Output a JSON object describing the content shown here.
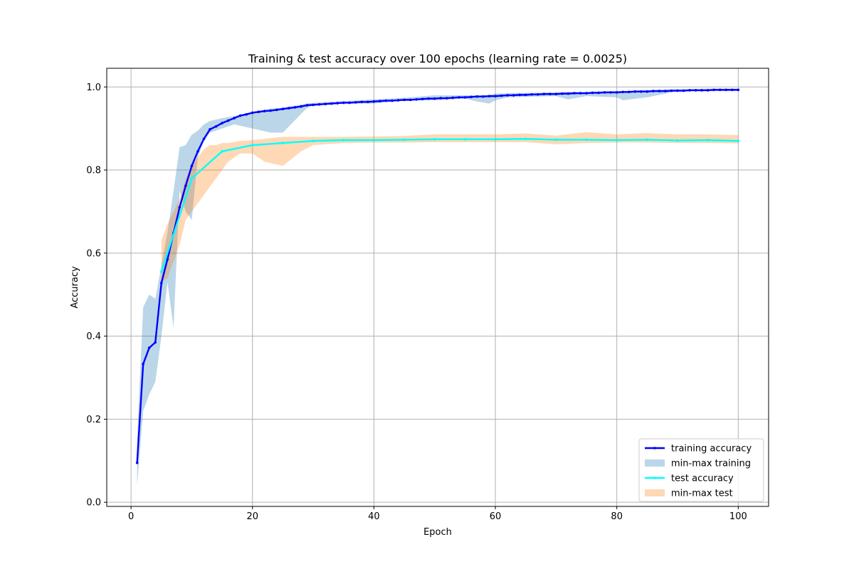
{
  "chart_data": {
    "type": "line",
    "title": "Training & test accuracy over 100 epochs (learning rate = 0.0025)",
    "xlabel": "Epoch",
    "ylabel": "Accuracy",
    "xlim": [
      -4,
      105
    ],
    "ylim": [
      -0.01,
      1.045
    ],
    "xticks": [
      0,
      20,
      40,
      60,
      80,
      100
    ],
    "yticks": [
      0.0,
      0.2,
      0.4,
      0.6,
      0.8,
      1.0
    ],
    "ytick_labels": [
      "0.0",
      "0.2",
      "0.4",
      "0.6",
      "0.8",
      "1.0"
    ],
    "grid": true,
    "legend_position": "lower right",
    "legend": [
      {
        "label": "training accuracy",
        "kind": "line-marker",
        "color": "#0000ff"
      },
      {
        "label": "min-max training",
        "kind": "band",
        "color": "#1f77b4",
        "alpha": 0.3
      },
      {
        "label": "test accuracy",
        "kind": "line-marker",
        "color": "#00ffff"
      },
      {
        "label": "min-max test",
        "kind": "band",
        "color": "#ff7f0e",
        "alpha": 0.3
      }
    ],
    "bands": [
      {
        "name": "min-max training",
        "color": "#1f77b4",
        "alpha": 0.3,
        "x": [
          1,
          2,
          3,
          4,
          5,
          6,
          7,
          8,
          9,
          10,
          11,
          12,
          13,
          15,
          17,
          20,
          23,
          25,
          27,
          29,
          30,
          35,
          40,
          45,
          50,
          55,
          57,
          59,
          60,
          62,
          65,
          70,
          72,
          75,
          80,
          81,
          85,
          90,
          95,
          100
        ],
        "min": [
          0.04,
          0.22,
          0.26,
          0.29,
          0.4,
          0.53,
          0.42,
          0.75,
          0.7,
          0.68,
          0.83,
          0.87,
          0.89,
          0.9,
          0.91,
          0.9,
          0.89,
          0.89,
          0.92,
          0.95,
          0.955,
          0.96,
          0.96,
          0.968,
          0.968,
          0.972,
          0.965,
          0.96,
          0.968,
          0.975,
          0.976,
          0.978,
          0.97,
          0.978,
          0.975,
          0.968,
          0.975,
          0.99,
          0.99,
          0.99
        ],
        "max": [
          0.15,
          0.47,
          0.5,
          0.49,
          0.57,
          0.65,
          0.75,
          0.855,
          0.86,
          0.885,
          0.895,
          0.91,
          0.918,
          0.925,
          0.93,
          0.94,
          0.948,
          0.95,
          0.955,
          0.96,
          0.962,
          0.966,
          0.97,
          0.974,
          0.98,
          0.98,
          0.98,
          0.98,
          0.984,
          0.985,
          0.986,
          0.987,
          0.988,
          0.988,
          0.99,
          0.99,
          0.993,
          0.995,
          0.996,
          0.996
        ]
      },
      {
        "name": "min-max test",
        "color": "#ff7f0e",
        "alpha": 0.3,
        "x": [
          5,
          6,
          7,
          8,
          9,
          10,
          11,
          12,
          13,
          14,
          15,
          16,
          18,
          20,
          22,
          25,
          28,
          30,
          35,
          40,
          45,
          50,
          55,
          60,
          65,
          70,
          75,
          80,
          85,
          90,
          95,
          100
        ],
        "min": [
          0.53,
          0.54,
          0.58,
          0.62,
          0.68,
          0.7,
          0.72,
          0.74,
          0.76,
          0.78,
          0.8,
          0.82,
          0.84,
          0.84,
          0.82,
          0.81,
          0.845,
          0.86,
          0.865,
          0.866,
          0.866,
          0.867,
          0.867,
          0.867,
          0.867,
          0.862,
          0.865,
          0.866,
          0.866,
          0.865,
          0.865,
          0.864
        ],
        "max": [
          0.63,
          0.67,
          0.7,
          0.73,
          0.78,
          0.81,
          0.83,
          0.85,
          0.86,
          0.86,
          0.865,
          0.865,
          0.87,
          0.872,
          0.875,
          0.88,
          0.88,
          0.88,
          0.88,
          0.881,
          0.882,
          0.886,
          0.886,
          0.886,
          0.888,
          0.883,
          0.891,
          0.886,
          0.889,
          0.886,
          0.886,
          0.884
        ]
      }
    ],
    "series": [
      {
        "name": "training accuracy",
        "color": "#0000ff",
        "x": [
          1,
          2,
          3,
          4,
          5,
          6,
          7,
          8,
          9,
          10,
          11,
          12,
          13,
          14,
          15,
          16,
          17,
          18,
          19,
          20,
          21,
          22,
          23,
          24,
          25,
          26,
          27,
          28,
          29,
          30,
          31,
          32,
          33,
          34,
          35,
          36,
          37,
          38,
          39,
          40,
          41,
          42,
          43,
          44,
          45,
          46,
          47,
          48,
          49,
          50,
          51,
          52,
          53,
          54,
          55,
          56,
          57,
          58,
          59,
          60,
          61,
          62,
          63,
          64,
          65,
          66,
          67,
          68,
          69,
          70,
          71,
          72,
          73,
          74,
          75,
          76,
          77,
          78,
          79,
          80,
          81,
          82,
          83,
          84,
          85,
          86,
          87,
          88,
          89,
          90,
          91,
          92,
          93,
          94,
          95,
          96,
          97,
          98,
          99,
          100
        ],
        "y": [
          0.095,
          0.333,
          0.372,
          0.385,
          0.528,
          0.585,
          0.648,
          0.71,
          0.762,
          0.81,
          0.845,
          0.875,
          0.898,
          0.905,
          0.913,
          0.919,
          0.925,
          0.931,
          0.934,
          0.938,
          0.94,
          0.942,
          0.943,
          0.945,
          0.947,
          0.949,
          0.951,
          0.953,
          0.956,
          0.957,
          0.958,
          0.959,
          0.96,
          0.961,
          0.962,
          0.962,
          0.963,
          0.964,
          0.964,
          0.965,
          0.966,
          0.967,
          0.967,
          0.968,
          0.969,
          0.969,
          0.97,
          0.971,
          0.972,
          0.972,
          0.973,
          0.973,
          0.974,
          0.975,
          0.975,
          0.976,
          0.977,
          0.977,
          0.978,
          0.978,
          0.979,
          0.98,
          0.98,
          0.981,
          0.981,
          0.982,
          0.982,
          0.983,
          0.983,
          0.983,
          0.984,
          0.984,
          0.985,
          0.985,
          0.985,
          0.986,
          0.986,
          0.987,
          0.987,
          0.987,
          0.988,
          0.988,
          0.989,
          0.989,
          0.989,
          0.99,
          0.99,
          0.99,
          0.991,
          0.991,
          0.991,
          0.992,
          0.992,
          0.992,
          0.992,
          0.993,
          0.993,
          0.993,
          0.993,
          0.993
        ]
      },
      {
        "name": "test accuracy",
        "color": "#00ffff",
        "x": [
          5,
          10,
          15,
          20,
          25,
          30,
          35,
          40,
          45,
          50,
          55,
          60,
          65,
          70,
          75,
          80,
          85,
          90,
          95,
          100
        ],
        "y": [
          0.555,
          0.78,
          0.845,
          0.86,
          0.865,
          0.87,
          0.872,
          0.872,
          0.873,
          0.874,
          0.874,
          0.874,
          0.875,
          0.873,
          0.873,
          0.872,
          0.873,
          0.871,
          0.872,
          0.87
        ]
      }
    ]
  }
}
